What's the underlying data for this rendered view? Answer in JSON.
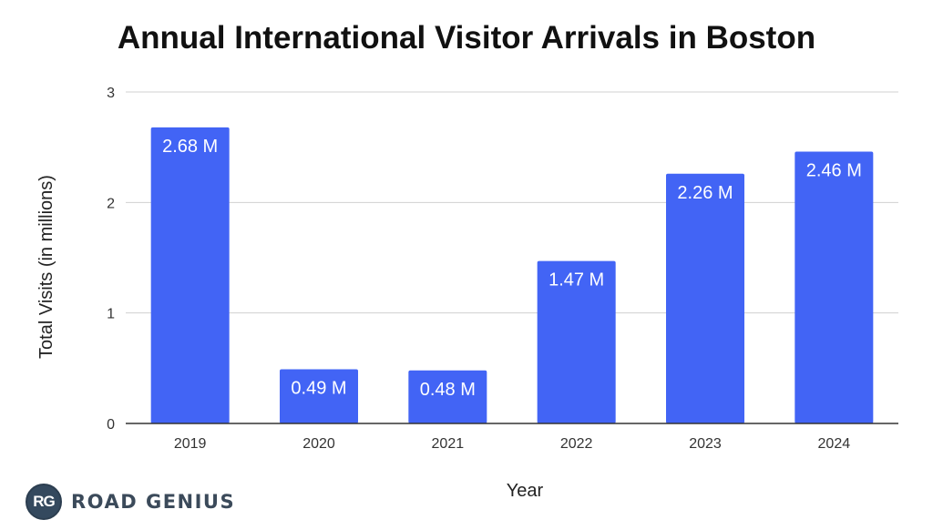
{
  "chart_data": {
    "type": "bar",
    "title": "Annual International Visitor Arrivals in Boston",
    "xlabel": "Year",
    "ylabel": "Total Visits (in millions)",
    "categories": [
      "2019",
      "2020",
      "2021",
      "2022",
      "2023",
      "2024"
    ],
    "values": [
      2.68,
      0.49,
      0.48,
      1.47,
      2.26,
      2.46
    ],
    "data_labels": [
      "2.68 M",
      "0.49 M",
      "0.48 M",
      "1.47 M",
      "2.26 M",
      "2.46 M"
    ],
    "ylim": [
      0,
      3
    ],
    "yticks": [
      0,
      1,
      2,
      3
    ],
    "grid": true,
    "bar_color": "#4264f5"
  },
  "brand": {
    "badge": "RG",
    "name": "ROAD GENIUS"
  }
}
